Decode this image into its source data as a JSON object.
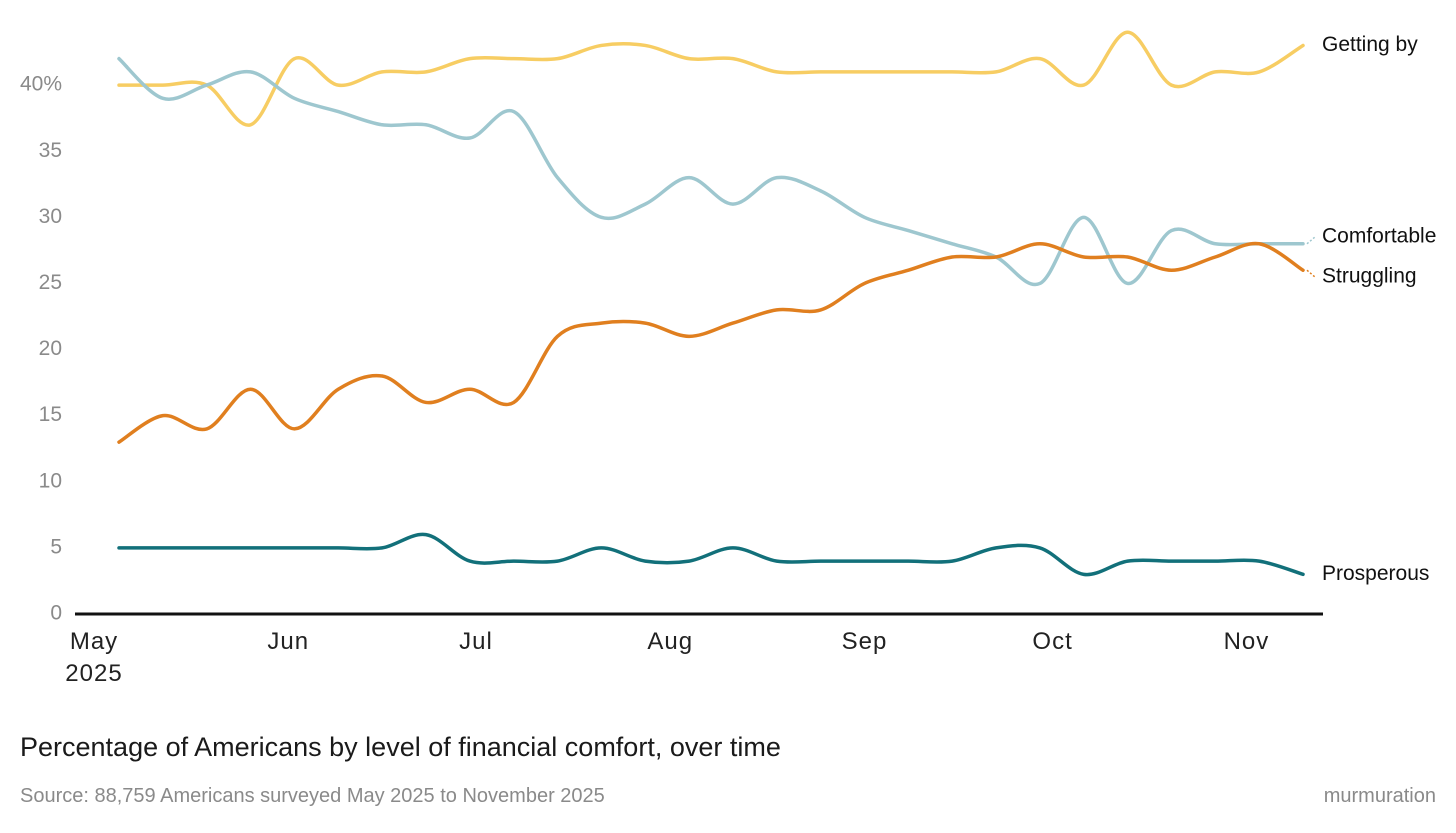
{
  "chart_data": {
    "type": "line",
    "title": "Percentage of Americans by level of financial comfort, over time",
    "source": "Source: 88,759 Americans surveyed May 2025 to November 2025",
    "brand": "murmuration",
    "categories": [
      null,
      null,
      null,
      null,
      null,
      null,
      null,
      null,
      null,
      null,
      null,
      null,
      null,
      null,
      null,
      null,
      null,
      null,
      null,
      null,
      null,
      null,
      null,
      null,
      null,
      null,
      null,
      null
    ],
    "xticks": [
      {
        "value": -0.57,
        "label": "May\n2025"
      },
      {
        "value": 3.86,
        "label": "Jun"
      },
      {
        "value": 8.14,
        "label": "Jul"
      },
      {
        "value": 12.57,
        "label": "Aug"
      },
      {
        "value": 17,
        "label": "Sep"
      },
      {
        "value": 21.29,
        "label": "Oct"
      },
      {
        "value": 25.71,
        "label": "Nov"
      }
    ],
    "ylim": [
      0,
      45
    ],
    "yticks": [
      0,
      5,
      10,
      15,
      20,
      25,
      30,
      35,
      {
        "value": 40,
        "label": "40%"
      }
    ],
    "grid": false,
    "series": [
      {
        "name": "Getting by",
        "color": "#f7cd63",
        "values": [
          40,
          40,
          40,
          37,
          42,
          40,
          41,
          41,
          42,
          42,
          42,
          43,
          43,
          42,
          42,
          41,
          41,
          41,
          41,
          41,
          41,
          42,
          40,
          44,
          40,
          41,
          41,
          43
        ]
      },
      {
        "name": "Comfortable",
        "color": "#9ec7cf",
        "values": [
          42,
          39,
          40,
          41,
          39,
          38,
          37,
          37,
          36,
          38,
          33,
          30,
          31,
          33,
          31,
          33,
          32,
          30,
          29,
          28,
          27,
          25,
          30,
          25,
          29,
          28,
          28,
          28
        ]
      },
      {
        "name": "Struggling",
        "color": "#e07f1f",
        "values": [
          13,
          15,
          14,
          17,
          14,
          17,
          18,
          16,
          17,
          16,
          21,
          22,
          22,
          21,
          22,
          23,
          23,
          25,
          26,
          27,
          27,
          28,
          27,
          27,
          26,
          27,
          28,
          26
        ]
      },
      {
        "name": "Prosperous",
        "color": "#12707a",
        "values": [
          5,
          5,
          5,
          5,
          5,
          5,
          5,
          6,
          4,
          4,
          4,
          5,
          4,
          4,
          5,
          4,
          4,
          4,
          4,
          4,
          5,
          5,
          3,
          4,
          4,
          4,
          4,
          3
        ]
      }
    ]
  }
}
